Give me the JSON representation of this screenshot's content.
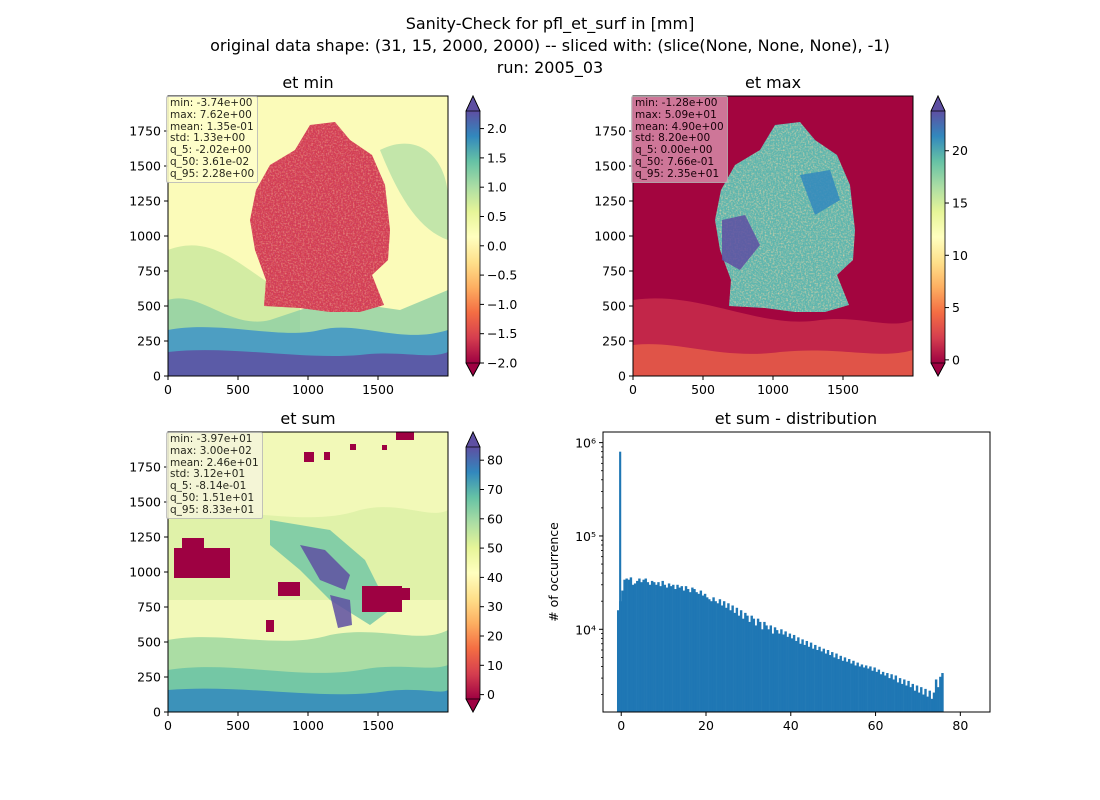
{
  "suptitle": {
    "line1": "Sanity-Check for pfl_et_surf in [mm]",
    "line2": "original data shape: (31, 15, 2000, 2000) -- sliced with: (slice(None, None, None), -1)",
    "line3": "run: 2005_03"
  },
  "chart_data": [
    {
      "type": "heatmap",
      "title": "et min",
      "colormap": "Spectral",
      "x_ticks": [
        "0",
        "500",
        "1000",
        "1500"
      ],
      "y_ticks": [
        "0",
        "250",
        "500",
        "750",
        "1000",
        "1250",
        "1500",
        "1750"
      ],
      "colorbar_ticks": [
        "2.0",
        "1.5",
        "1.0",
        "0.5",
        "0.0",
        "−0.5",
        "−1.0",
        "−1.5",
        "−2.0"
      ],
      "colorbar_range": [
        -2.0,
        2.3
      ],
      "stats": [
        "min: -3.74e+00",
        "max: 7.62e+00",
        "mean: 1.35e-01",
        "std: 1.33e+00",
        "q_5: -2.02e+00",
        "q_50: 3.61e-02",
        "q_95: 2.28e+00"
      ],
      "stats_box_color": "#ffffcc"
    },
    {
      "type": "heatmap",
      "title": "et max",
      "colormap": "Spectral",
      "x_ticks": [
        "0",
        "500",
        "1000",
        "1500"
      ],
      "y_ticks": [
        "0",
        "250",
        "500",
        "750",
        "1000",
        "1250",
        "1500",
        "1750"
      ],
      "colorbar_ticks": [
        "20",
        "15",
        "10",
        "5",
        "0"
      ],
      "colorbar_range": [
        -0.3,
        23.8
      ],
      "stats": [
        "min: -1.28e+00",
        "max: 5.09e+01",
        "mean: 4.90e+00",
        "std: 8.20e+00",
        "q_5: 0.00e+00",
        "q_50: 7.66e-01",
        "q_95: 2.35e+01"
      ],
      "stats_box_color": "#d68aa8"
    },
    {
      "type": "heatmap",
      "title": "et sum",
      "colormap": "Spectral",
      "x_ticks": [
        "0",
        "500",
        "1000",
        "1500"
      ],
      "y_ticks": [
        "0",
        "250",
        "500",
        "750",
        "1000",
        "1250",
        "1500",
        "1750"
      ],
      "colorbar_ticks": [
        "80",
        "70",
        "60",
        "50",
        "40",
        "30",
        "20",
        "10",
        "0"
      ],
      "colorbar_range": [
        -1.5,
        84.5
      ],
      "stats": [
        "min: -3.97e+01",
        "max: 3.00e+02",
        "mean: 2.46e+01",
        "std: 3.12e+01",
        "q_5: -8.14e-01",
        "q_50: 1.51e+01",
        "q_95: 8.33e+01"
      ],
      "stats_box_color": "#f5f5dc"
    },
    {
      "type": "bar",
      "title": "et sum - distribution",
      "ylabel": "# of occurrence",
      "xlabel": "",
      "yscale": "log",
      "ylim": [
        1300,
        1300000
      ],
      "xlim": [
        -4.3,
        87.0
      ],
      "x_ticks": [
        "0",
        "20",
        "40",
        "60",
        "80"
      ],
      "y_ticks": [
        "10⁴",
        "10⁵",
        "10⁶"
      ],
      "bar_color": "#1f77b4",
      "spike": {
        "x": -0.5,
        "count": 800000
      },
      "bins": {
        "start": -1.0,
        "width": 0.5
      },
      "counts": [
        16000,
        20000,
        26000,
        34000,
        35000,
        34000,
        36000,
        30000,
        31000,
        33000,
        35000,
        32000,
        34000,
        35000,
        32000,
        30000,
        33000,
        32000,
        30000,
        32000,
        29000,
        33000,
        30000,
        28000,
        31000,
        29000,
        30000,
        27000,
        30000,
        28000,
        29000,
        26000,
        29000,
        27000,
        25000,
        28000,
        27000,
        25000,
        24000,
        26000,
        23000,
        24000,
        22000,
        21000,
        20000,
        22000,
        20000,
        19000,
        21000,
        18000,
        20000,
        17000,
        19000,
        16000,
        18000,
        15000,
        17000,
        14000,
        16000,
        13000,
        15000,
        14000,
        12000,
        14000,
        13000,
        11000,
        13000,
        12000,
        10000,
        12000,
        11000,
        10000,
        11000,
        9000,
        10500,
        9800,
        9000,
        10000,
        8800,
        9500,
        8300,
        9000,
        8000,
        8700,
        7500,
        8200,
        7000,
        7800,
        6800,
        7500,
        6500,
        7200,
        6200,
        6800,
        6000,
        6500,
        5800,
        6200,
        5500,
        6000,
        5300,
        5700,
        5000,
        5500,
        4800,
        5200,
        4600,
        5000,
        4500,
        4800,
        4300,
        4600,
        4100,
        4400,
        4000,
        4200,
        3900,
        4100,
        3800,
        4000,
        3600,
        3900,
        3500,
        3700,
        3300,
        3500,
        3200,
        3400,
        3000,
        3300,
        2900,
        3200,
        2700,
        3000,
        2600,
        2900,
        2500,
        2800,
        2400,
        2600,
        2200,
        2500,
        2100,
        2400,
        2000,
        2300,
        1900,
        2200,
        1800,
        2100,
        2900,
        2400,
        3100,
        3400
      ]
    }
  ]
}
